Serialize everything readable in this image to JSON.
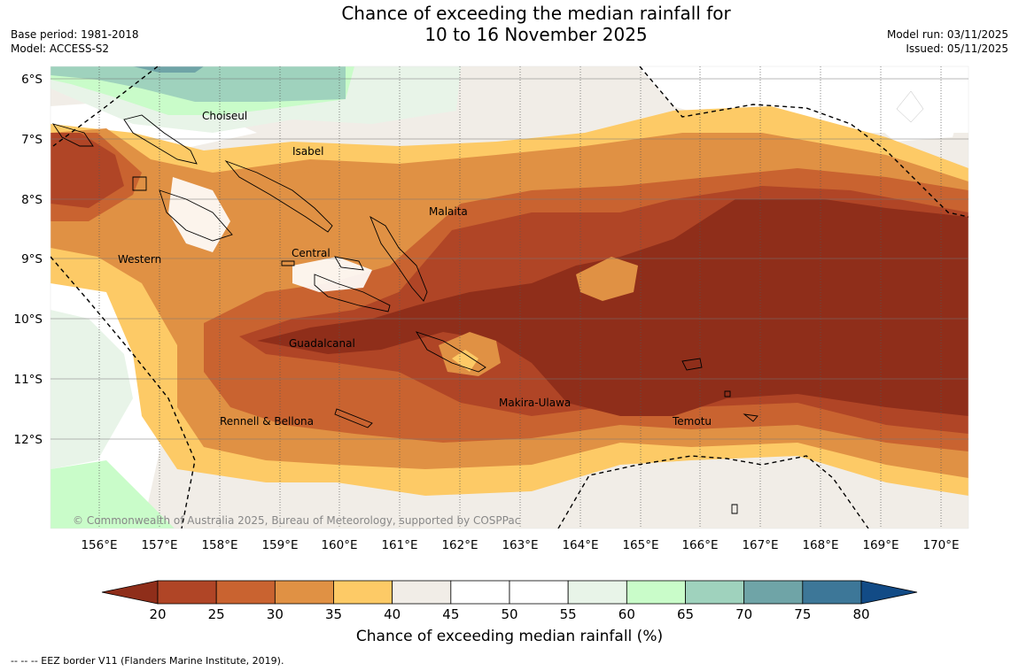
{
  "header": {
    "title_line1": "Chance of exceeding the median rainfall for",
    "title_line2": "10 to 16 November 2025",
    "base_period": "Base period: 1981-2018",
    "model": "Model: ACCESS-S2",
    "model_run": "Model run: 03/11/2025",
    "issued": "Issued: 05/11/2025"
  },
  "map": {
    "lat_labels": [
      "6°S",
      "7°S",
      "8°S",
      "9°S",
      "10°S",
      "11°S",
      "12°S"
    ],
    "lon_labels": [
      "156°E",
      "157°E",
      "158°E",
      "159°E",
      "160°E",
      "161°E",
      "162°E",
      "163°E",
      "164°E",
      "165°E",
      "166°E",
      "167°E",
      "168°E",
      "169°E",
      "170°E"
    ],
    "regions": [
      "Choiseul",
      "Isabel",
      "Malaita",
      "Western",
      "Central",
      "Guadalcanal",
      "Makira-Ulawa",
      "Rennell & Bellona",
      "Temotu"
    ],
    "copyright": "© Commonwealth of Australia 2025, Bureau of Meteorology, supported by COSPPac"
  },
  "colorbar": {
    "ticks": [
      "20",
      "25",
      "30",
      "35",
      "40",
      "45",
      "50",
      "55",
      "60",
      "65",
      "70",
      "75",
      "80"
    ],
    "colors": [
      "#8f2e1a",
      "#b04526",
      "#c96330",
      "#e09144",
      "#fdca66",
      "#f1ede7",
      "#ffffff",
      "#ffffff",
      "#e8f4e8",
      "#c9fcc9",
      "#9fd2bd",
      "#6fa4a7",
      "#3d7798",
      "#124b86"
    ],
    "title": "Chance of exceeding median rainfall (%)"
  },
  "footer": {
    "eez_note": "--  --  -- EEZ border V11 (Flanders Marine Institute, 2019)."
  }
}
